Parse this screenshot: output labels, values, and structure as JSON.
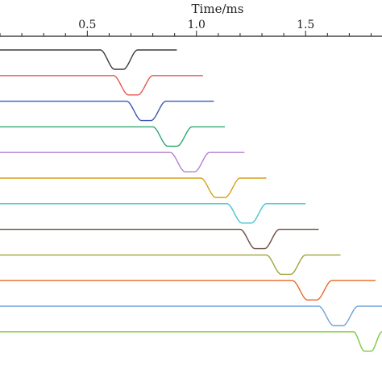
{
  "chart_data": {
    "type": "line",
    "title": "",
    "xlabel": "Time/ms",
    "ylabel": "",
    "xaxis_position": "top",
    "xlim": [
      0.1,
      1.85
    ],
    "x_ticks": [
      0.5,
      1.0,
      1.5
    ],
    "x_tick_labels": [
      "0.5",
      "1.0",
      "1.5"
    ],
    "grid": false,
    "legend": "none",
    "series": [
      {
        "color": "#3a3a3a",
        "dip_start": 0.56,
        "dip_end": 0.73,
        "end": 0.91
      },
      {
        "color": "#e8574f",
        "dip_start": 0.62,
        "dip_end": 0.8,
        "end": 1.03
      },
      {
        "color": "#3d57b7",
        "dip_start": 0.68,
        "dip_end": 0.86,
        "end": 1.08
      },
      {
        "color": "#2aa872",
        "dip_start": 0.8,
        "dip_end": 0.98,
        "end": 1.13
      },
      {
        "color": "#b57fd6",
        "dip_start": 0.88,
        "dip_end": 1.06,
        "end": 1.22
      },
      {
        "color": "#d4a21a",
        "dip_start": 1.02,
        "dip_end": 1.2,
        "end": 1.32
      },
      {
        "color": "#45c4cf",
        "dip_start": 1.14,
        "dip_end": 1.32,
        "end": 1.5
      },
      {
        "color": "#6b4a3f",
        "dip_start": 1.2,
        "dip_end": 1.38,
        "end": 1.56
      },
      {
        "color": "#9ea33a",
        "dip_start": 1.32,
        "dip_end": 1.5,
        "end": 1.66
      },
      {
        "color": "#e86a2a",
        "dip_start": 1.44,
        "dip_end": 1.62,
        "end": 1.82
      },
      {
        "color": "#6ea2d8",
        "dip_start": 1.56,
        "dip_end": 1.74,
        "end": 1.85
      },
      {
        "color": "#7ec83f",
        "dip_start": 1.72,
        "dip_end": 1.85,
        "end": 1.85
      }
    ]
  }
}
